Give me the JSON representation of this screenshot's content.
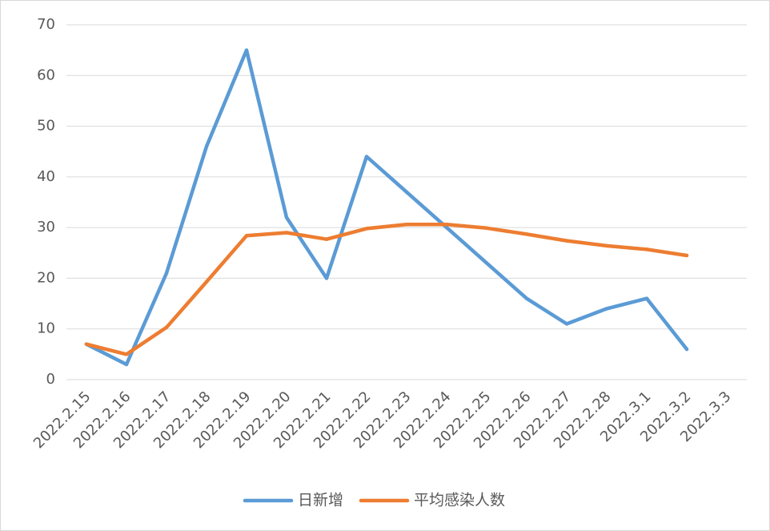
{
  "chart_data": {
    "type": "line",
    "title": "",
    "xlabel": "",
    "ylabel": "",
    "categories": [
      "2022.2.15",
      "2022.2.16",
      "2022.2.17",
      "2022.2.18",
      "2022.2.19",
      "2022.2.20",
      "2022.2.21",
      "2022.2.22",
      "2022.2.23",
      "2022.2.24",
      "2022.2.25",
      "2022.2.26",
      "2022.2.27",
      "2022.2.28",
      "2022.3.1",
      "2022.3.2",
      "2022.3.3"
    ],
    "ylim": [
      0,
      70
    ],
    "yticks": [
      0,
      10,
      20,
      30,
      40,
      50,
      60,
      70
    ],
    "grid": true,
    "legend_position": "bottom",
    "series": [
      {
        "name": "日新增",
        "color": "#5b9bd5",
        "values": [
          7,
          3,
          21,
          46,
          65,
          32,
          20,
          44,
          37,
          30,
          23,
          16,
          11,
          14,
          16,
          6,
          null
        ]
      },
      {
        "name": "平均感染人数",
        "color": "#ed7d31",
        "values": [
          7,
          5,
          10.3,
          19.3,
          28.4,
          29,
          27.7,
          29.8,
          30.6,
          30.6,
          29.9,
          28.7,
          27.4,
          26.4,
          25.7,
          24.5,
          null
        ]
      }
    ]
  }
}
